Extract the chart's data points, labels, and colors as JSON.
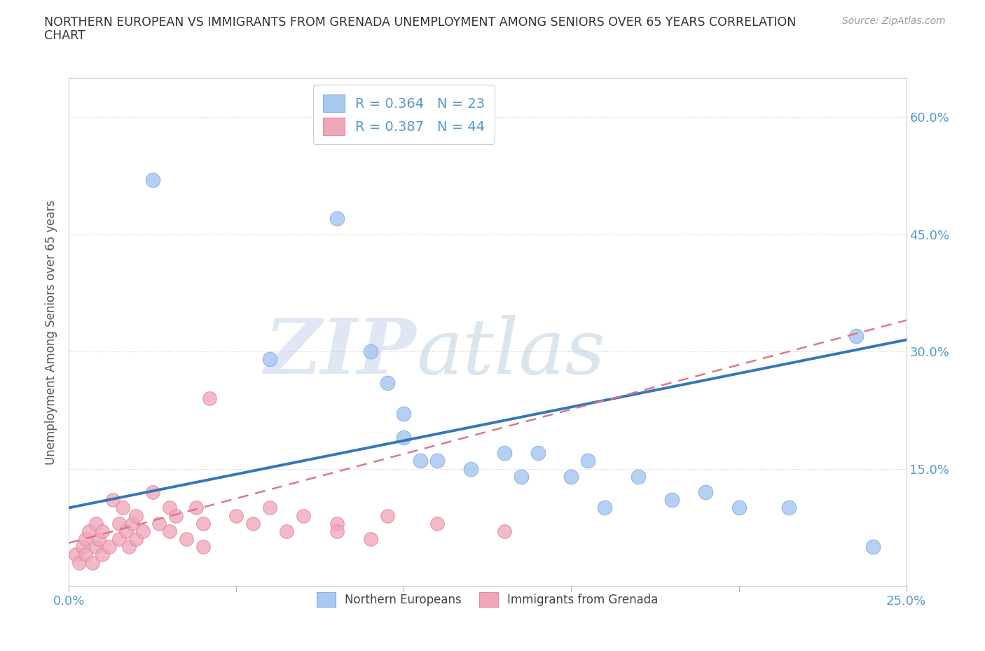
{
  "title_line1": "NORTHERN EUROPEAN VS IMMIGRANTS FROM GRENADA UNEMPLOYMENT AMONG SENIORS OVER 65 YEARS CORRELATION",
  "title_line2": "CHART",
  "source": "Source: ZipAtlas.com",
  "ylabel": "Unemployment Among Seniors over 65 years",
  "xlim": [
    0.0,
    0.25
  ],
  "ylim": [
    0.0,
    0.65
  ],
  "x_ticks": [
    0.0,
    0.05,
    0.1,
    0.15,
    0.2,
    0.25
  ],
  "x_tick_labels": [
    "0.0%",
    "",
    "",
    "",
    "",
    "25.0%"
  ],
  "y_ticks": [
    0.0,
    0.15,
    0.3,
    0.45,
    0.6
  ],
  "y_tick_labels": [
    "",
    "15.0%",
    "30.0%",
    "45.0%",
    "60.0%"
  ],
  "blue_R": 0.364,
  "blue_N": 23,
  "pink_R": 0.387,
  "pink_N": 44,
  "blue_color": "#a8c8f0",
  "pink_color": "#f0a8b8",
  "blue_line_color": "#3377bb",
  "pink_line_color": "#dd7788",
  "blue_scatter_x": [
    0.025,
    0.06,
    0.08,
    0.09,
    0.095,
    0.1,
    0.1,
    0.105,
    0.11,
    0.12,
    0.13,
    0.135,
    0.14,
    0.15,
    0.155,
    0.16,
    0.17,
    0.18,
    0.19,
    0.2,
    0.215,
    0.235,
    0.24
  ],
  "blue_scatter_y": [
    0.52,
    0.29,
    0.47,
    0.3,
    0.26,
    0.22,
    0.19,
    0.16,
    0.16,
    0.15,
    0.17,
    0.14,
    0.17,
    0.14,
    0.16,
    0.1,
    0.14,
    0.11,
    0.12,
    0.1,
    0.1,
    0.32,
    0.05
  ],
  "pink_scatter_x": [
    0.002,
    0.003,
    0.004,
    0.005,
    0.005,
    0.006,
    0.007,
    0.008,
    0.008,
    0.009,
    0.01,
    0.01,
    0.012,
    0.013,
    0.015,
    0.015,
    0.016,
    0.017,
    0.018,
    0.019,
    0.02,
    0.02,
    0.022,
    0.025,
    0.027,
    0.03,
    0.03,
    0.032,
    0.035,
    0.038,
    0.04,
    0.04,
    0.042,
    0.05,
    0.055,
    0.06,
    0.065,
    0.07,
    0.08,
    0.08,
    0.09,
    0.095,
    0.11,
    0.13
  ],
  "pink_scatter_y": [
    0.04,
    0.03,
    0.05,
    0.06,
    0.04,
    0.07,
    0.03,
    0.05,
    0.08,
    0.06,
    0.04,
    0.07,
    0.05,
    0.11,
    0.06,
    0.08,
    0.1,
    0.07,
    0.05,
    0.08,
    0.06,
    0.09,
    0.07,
    0.12,
    0.08,
    0.07,
    0.1,
    0.09,
    0.06,
    0.1,
    0.08,
    0.05,
    0.24,
    0.09,
    0.08,
    0.1,
    0.07,
    0.09,
    0.08,
    0.07,
    0.06,
    0.09,
    0.08,
    0.07
  ],
  "blue_line_x0": 0.0,
  "blue_line_y0": 0.1,
  "blue_line_x1": 0.25,
  "blue_line_y1": 0.315,
  "pink_line_x0": 0.0,
  "pink_line_y0": 0.055,
  "pink_line_x1": 0.25,
  "pink_line_y1": 0.34
}
